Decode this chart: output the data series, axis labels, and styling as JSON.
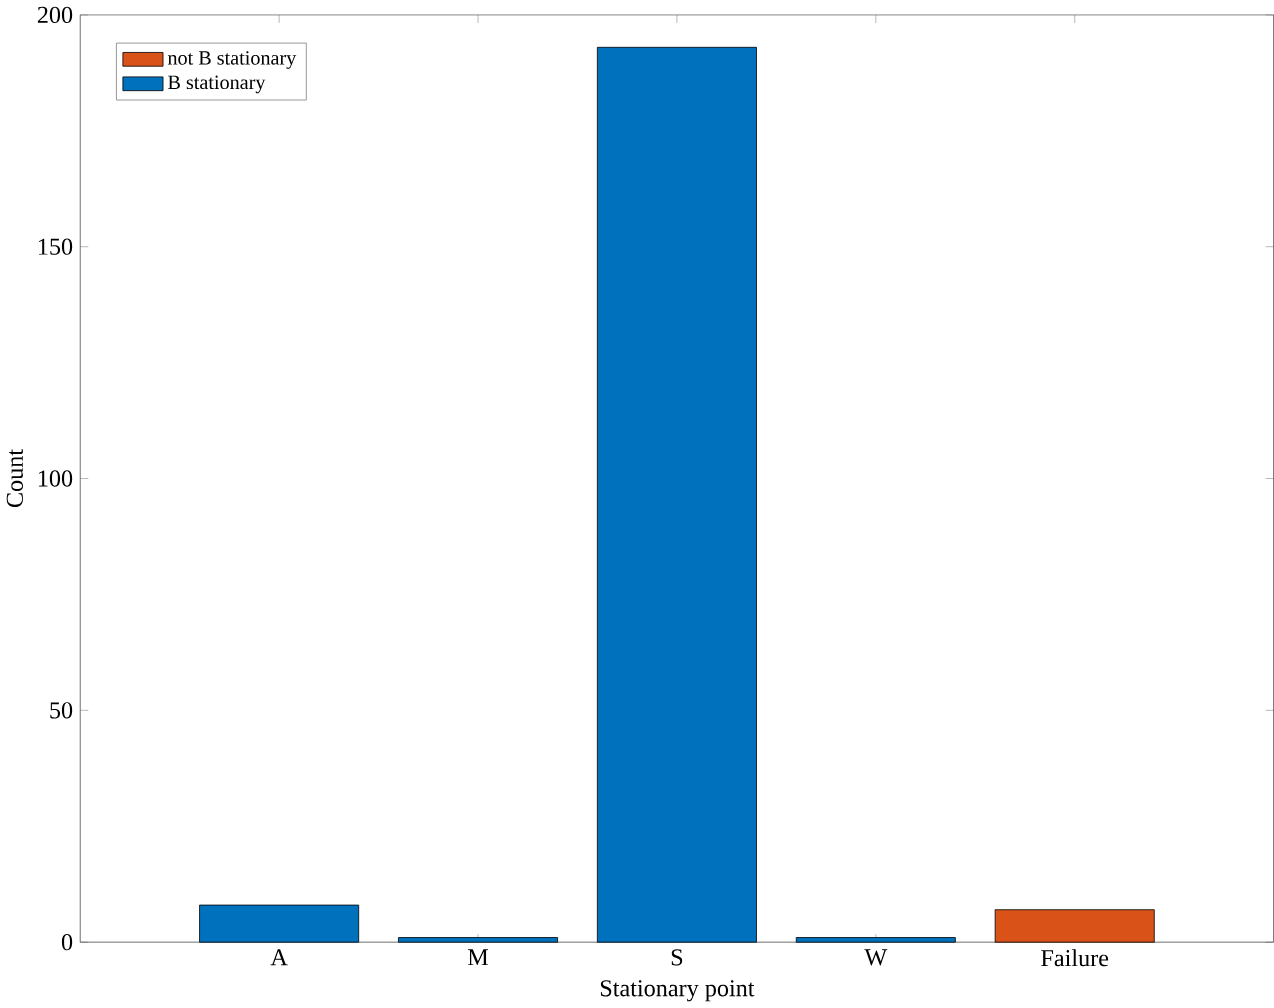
{
  "chart_data": {
    "type": "bar",
    "xlabel": "Stationary point",
    "ylabel": "Count",
    "categories": [
      "A",
      "M",
      "S",
      "W",
      "Failure"
    ],
    "series": [
      {
        "name": "B stationary",
        "color": "#0072bd",
        "values": [
          8,
          1,
          193,
          1,
          null
        ]
      },
      {
        "name": "not B stationary",
        "color": "#d95319",
        "values": [
          null,
          null,
          null,
          null,
          7
        ]
      }
    ],
    "ylim": [
      0,
      200
    ],
    "yticks": [
      0,
      50,
      100,
      150,
      200
    ],
    "legend": "top left"
  }
}
